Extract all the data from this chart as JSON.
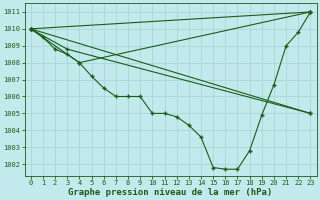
{
  "title": "Graphe pression niveau de la mer (hPa)",
  "bg_color": "#c2eaec",
  "grid_color": "#a8d8da",
  "line_color": "#1a5c1a",
  "xlim": [
    -0.5,
    23.5
  ],
  "ylim": [
    1001.3,
    1011.5
  ],
  "yticks": [
    1002,
    1003,
    1004,
    1005,
    1006,
    1007,
    1008,
    1009,
    1010,
    1011
  ],
  "xticks": [
    0,
    1,
    2,
    3,
    4,
    5,
    6,
    7,
    8,
    9,
    10,
    11,
    12,
    13,
    14,
    15,
    16,
    17,
    18,
    19,
    20,
    21,
    22,
    23
  ],
  "main_x": [
    0,
    1,
    2,
    3,
    4,
    5,
    6,
    7,
    8,
    9,
    10,
    11,
    12,
    13,
    14,
    15,
    16,
    17,
    18,
    19,
    20,
    21,
    22,
    23
  ],
  "main_y": [
    1010.0,
    1009.5,
    1008.8,
    1008.5,
    1008.0,
    1007.2,
    1006.5,
    1006.0,
    1006.0,
    1006.0,
    1005.0,
    1005.0,
    1004.8,
    1004.3,
    1003.6,
    1001.8,
    1001.7,
    1001.7,
    1002.8,
    1004.9,
    1006.7,
    1009.0,
    1009.8,
    1011.0
  ],
  "fan_lines": [
    {
      "x": [
        0,
        23
      ],
      "y": [
        1010.0,
        1011.0
      ]
    },
    {
      "x": [
        0,
        23
      ],
      "y": [
        1010.0,
        1005.0
      ]
    },
    {
      "x": [
        0,
        4,
        23
      ],
      "y": [
        1010.0,
        1008.0,
        1011.0
      ]
    },
    {
      "x": [
        0,
        3,
        23
      ],
      "y": [
        1010.0,
        1008.8,
        1005.0
      ]
    }
  ],
  "title_fontsize": 6.5,
  "tick_fontsize": 5.0
}
